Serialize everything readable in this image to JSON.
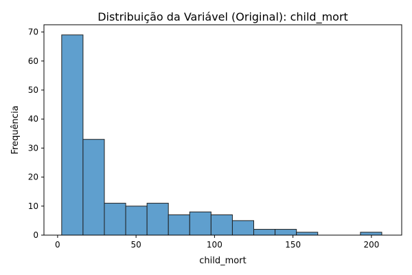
{
  "chart_data": {
    "type": "bar",
    "title": "Distribuição da Variável (Original): child_mort",
    "xlabel": "child_mort",
    "ylabel": "Frequência",
    "xlim": [
      -8.7,
      219.3
    ],
    "ylim": [
      0,
      72.5
    ],
    "xticks": [
      0,
      50,
      100,
      150,
      200
    ],
    "yticks": [
      0,
      10,
      20,
      30,
      40,
      50,
      60,
      70
    ],
    "grid": false,
    "bar_color": "#5f9fce",
    "bar_edge_color": "#1f1f1f",
    "bins": [
      {
        "start": 2.6,
        "end": 16.2,
        "count": 69
      },
      {
        "start": 16.2,
        "end": 29.8,
        "count": 33
      },
      {
        "start": 29.8,
        "end": 43.4,
        "count": 11
      },
      {
        "start": 43.4,
        "end": 57.0,
        "count": 10
      },
      {
        "start": 57.0,
        "end": 70.6,
        "count": 11
      },
      {
        "start": 70.6,
        "end": 84.2,
        "count": 7
      },
      {
        "start": 84.2,
        "end": 97.8,
        "count": 8
      },
      {
        "start": 97.8,
        "end": 111.4,
        "count": 7
      },
      {
        "start": 111.4,
        "end": 125.0,
        "count": 5
      },
      {
        "start": 125.0,
        "end": 138.6,
        "count": 2
      },
      {
        "start": 138.6,
        "end": 152.2,
        "count": 2
      },
      {
        "start": 152.2,
        "end": 165.8,
        "count": 1
      },
      {
        "start": 165.8,
        "end": 179.4,
        "count": 0
      },
      {
        "start": 179.4,
        "end": 193.0,
        "count": 0
      },
      {
        "start": 193.0,
        "end": 206.6,
        "count": 1
      }
    ]
  }
}
